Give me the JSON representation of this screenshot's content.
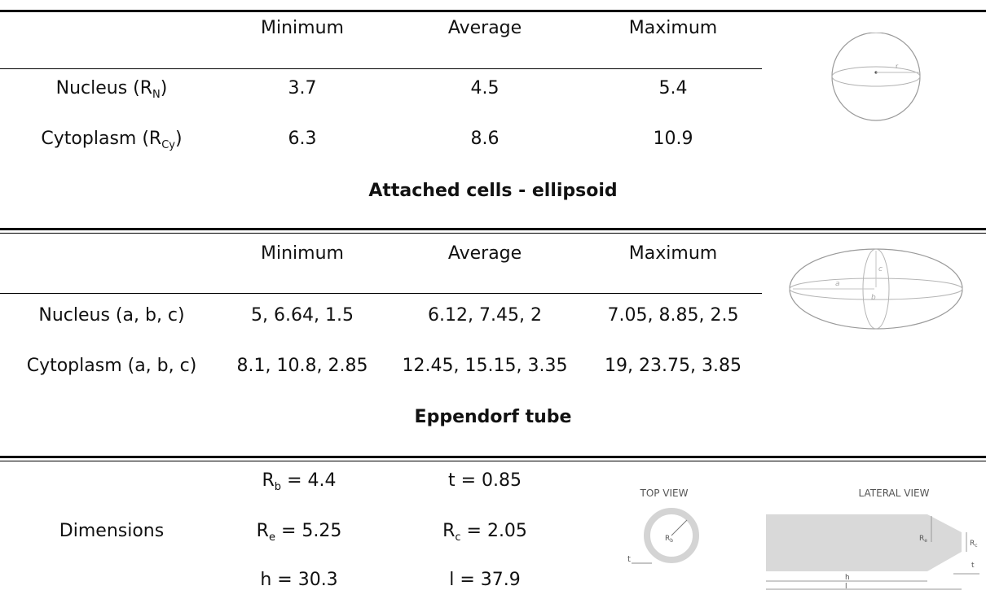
{
  "columns": {
    "minimum": "Minimum",
    "average": "Average",
    "maximum": "Maximum"
  },
  "sphere_table": {
    "rows": [
      {
        "label": "Nucleus (R",
        "label_sub": "N",
        "label_end": ")",
        "min": "3.7",
        "avg": "4.5",
        "max": "5.4"
      },
      {
        "label": "Cytoplasm (R",
        "label_sub": "Cy",
        "label_end": ")",
        "min": "6.3",
        "avg": "8.6",
        "max": "10.9"
      }
    ],
    "diagram_label": "r"
  },
  "ellipsoid_table": {
    "title": "Attached cells - ellipsoid",
    "rows": [
      {
        "label": "Nucleus (a, b, c)",
        "min": "5, 6.64, 1.5",
        "avg": "6.12, 7.45, 2",
        "max": "7.05, 8.85, 2.5"
      },
      {
        "label": "Cytoplasm (a, b, c)",
        "min": "8.1, 10.8, 2.85",
        "avg": "12.45, 15.15, 3.35",
        "max": "19, 23.75, 3.85"
      }
    ],
    "diagram_labels": {
      "a": "a",
      "b": "b",
      "c": "c"
    }
  },
  "tube_table": {
    "title": "Eppendorf tube",
    "row_label": "Dimensions",
    "values": [
      {
        "sym": "R",
        "sub": "b",
        "rest": " = 4.4"
      },
      {
        "sym": "t",
        "sub": "",
        "rest": " = 0.85"
      },
      {
        "sym": "R",
        "sub": "e",
        "rest": " = 5.25"
      },
      {
        "sym": "R",
        "sub": "c",
        "rest": " = 2.05"
      },
      {
        "sym": "h",
        "sub": "",
        "rest": " = 30.3"
      },
      {
        "sym": "l",
        "sub": "",
        "rest": " = 37.9"
      }
    ],
    "diagram": {
      "top_view": "TOP VIEW",
      "lateral_view": "LATERAL VIEW",
      "rb": "R",
      "rb_sub": "b",
      "re": "R",
      "re_sub": "e",
      "rc": "R",
      "rc_sub": "c",
      "t": "t",
      "h": "h",
      "l": "l"
    }
  }
}
